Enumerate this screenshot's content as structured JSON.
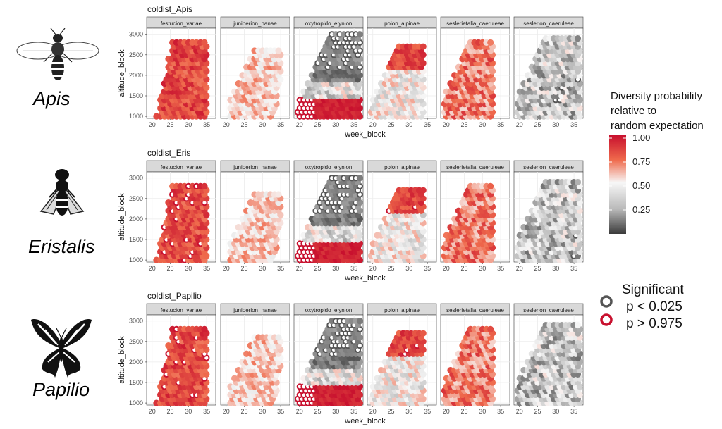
{
  "insects": [
    {
      "name": "Apis",
      "icon": "bee-icon"
    },
    {
      "name": "Eristalis",
      "icon": "hoverfly-icon"
    },
    {
      "name": "Papilio",
      "icon": "butterfly-icon"
    }
  ],
  "legend": {
    "title_lines": [
      "Diversity probability",
      "relative to",
      "random expectation"
    ],
    "ticks": [
      "1.00",
      "0.75",
      "0.50",
      "0.25"
    ],
    "colors": {
      "high": "#c8102e",
      "mid": "#f7f7f7",
      "low": "#3b3b3b"
    }
  },
  "significance": {
    "title": "Significant",
    "items": [
      {
        "label": "p < 0.025",
        "color": "#555555"
      },
      {
        "label": "p > 0.975",
        "color": "#c8102e"
      }
    ]
  },
  "chart_data": [
    {
      "type": "scatter",
      "title": "coldist_Apis",
      "xlabel": "week_block",
      "ylabel": "altitude_block",
      "facets": [
        "festucion_variae",
        "juniperion_nanae",
        "oxytropido_elynion",
        "poion_alpinae",
        "seslerietalia_caeruleae",
        "seslerion_caeruleae"
      ],
      "xticks": [
        "20",
        "25",
        "30",
        "35"
      ],
      "yticks": [
        "1000",
        "1500",
        "2000",
        "2500",
        "3000"
      ],
      "xlim": [
        18.5,
        37.5
      ],
      "ylim": [
        950,
        3150
      ]
    },
    {
      "type": "scatter",
      "title": "coldist_Eris",
      "xlabel": "week_block",
      "ylabel": "altitude_block",
      "facets": [
        "festucion_variae",
        "juniperion_nanae",
        "oxytropido_elynion",
        "poion_alpinae",
        "seslerietalia_caeruleae",
        "seslerion_caeruleae"
      ],
      "xticks": [
        "20",
        "25",
        "30",
        "35"
      ],
      "yticks": [
        "1000",
        "1500",
        "2000",
        "2500",
        "3000"
      ],
      "xlim": [
        18.5,
        37.5
      ],
      "ylim": [
        950,
        3150
      ]
    },
    {
      "type": "scatter",
      "title": "coldist_Papilio",
      "xlabel": "week_block",
      "ylabel": "altitude_block",
      "facets": [
        "festucion_variae",
        "juniperion_nanae",
        "oxytropido_elynion",
        "poion_alpinae",
        "seslerietalia_caeruleae",
        "seslerion_caeruleae"
      ],
      "xticks": [
        "20",
        "25",
        "30",
        "35"
      ],
      "yticks": [
        "1000",
        "1500",
        "2000",
        "2500",
        "3000"
      ],
      "xlim": [
        18.5,
        37.5
      ],
      "ylim": [
        950,
        3150
      ]
    }
  ]
}
